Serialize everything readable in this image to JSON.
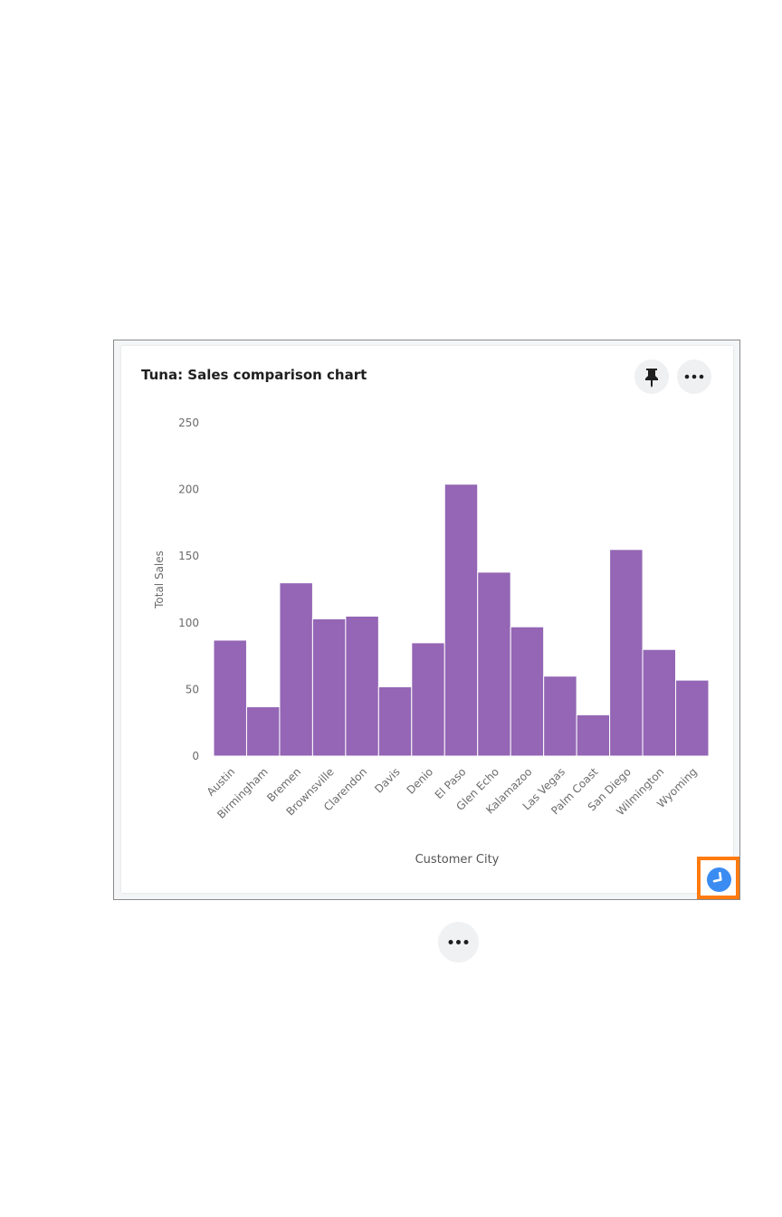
{
  "card": {
    "title": "Tuna: Sales comparison chart",
    "pin_icon": "pin-icon",
    "more_icon": "more-dots-icon"
  },
  "chart_data": {
    "type": "bar",
    "title": "Tuna: Sales comparison chart",
    "xlabel": "Customer City",
    "ylabel": "Total Sales",
    "ylim": [
      0,
      250
    ],
    "yticks": [
      0,
      50,
      100,
      150,
      200,
      250
    ],
    "categories": [
      "Austin",
      "Birmingham",
      "Bremen",
      "Brownsville",
      "Clarendon",
      "Davis",
      "Denio",
      "El Paso",
      "Glen Echo",
      "Kalamazoo",
      "Las Vegas",
      "Palm Coast",
      "San Diego",
      "Wilmington",
      "Wyoming"
    ],
    "values": [
      87,
      37,
      130,
      103,
      105,
      52,
      85,
      204,
      138,
      97,
      60,
      31,
      155,
      80,
      57
    ],
    "bar_color": "#9466b5",
    "grid": false,
    "legend": "none"
  },
  "toolbar": {
    "scroll_down_icon": "arrow-down-circle-icon",
    "accent_color": "#3b8cf2",
    "highlight_color": "#ff7a0f"
  },
  "footer": {
    "more_icon": "more-dots-icon"
  }
}
